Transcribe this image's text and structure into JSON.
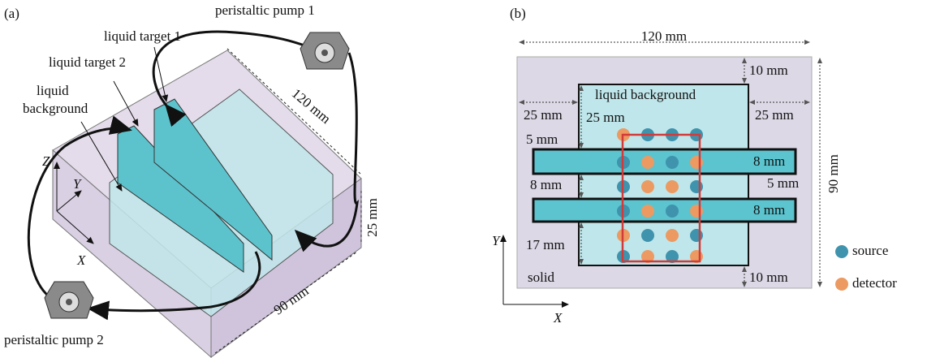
{
  "panel_a": {
    "label": "(a)",
    "pump_1": "peristaltic pump 1",
    "pump_2": "peristaltic pump 2",
    "target_1": "liquid target 1",
    "target_2": "liquid target 2",
    "background": [
      "liquid",
      "background"
    ],
    "length": "120 mm",
    "width": "90 mm",
    "height": "25 mm",
    "axes": [
      "Z",
      "Y",
      "X"
    ]
  },
  "panel_b": {
    "label": "(b)",
    "width": "120 mm",
    "height": "90 mm",
    "top_gap": "10 mm",
    "bottom_gap": "10 mm",
    "background": "liquid background",
    "left_margin": "25 mm",
    "inner_depth": "25 mm",
    "right_margin": "25 mm",
    "top_offset": "5 mm",
    "bar_1": "8 mm",
    "bar_gap": "8 mm",
    "side_offset": "5 mm",
    "bar_2": "8 mm",
    "bottom_depth": "17 mm",
    "solid": "solid",
    "axes": [
      "Y",
      "X"
    ],
    "legend": [
      "source",
      "detector"
    ]
  }
}
